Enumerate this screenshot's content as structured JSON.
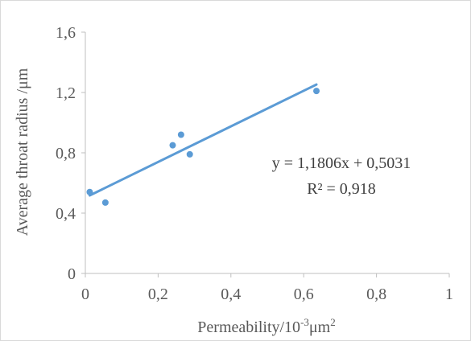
{
  "chart_data": {
    "type": "scatter",
    "title": "",
    "xlabel_main": "Permeability/10",
    "xlabel_sup": "-3",
    "xlabel_tail": "μm",
    "xlabel_sup2": "2",
    "ylabel": "Average throat radius /μm",
    "xlim": [
      0,
      1
    ],
    "ylim": [
      0,
      1.6
    ],
    "x_ticks": [
      0,
      0.2,
      0.4,
      0.6,
      0.8,
      1
    ],
    "x_tick_labels": [
      "0",
      "0,2",
      "0,4",
      "0,6",
      "0,8",
      "1"
    ],
    "y_ticks": [
      0,
      0.4,
      0.8,
      1.2,
      1.6
    ],
    "y_tick_labels": [
      "0",
      "0,4",
      "0,8",
      "1,2",
      "1,6"
    ],
    "grid": false,
    "series": [
      {
        "points": [
          {
            "x": 0.012,
            "y": 0.54
          },
          {
            "x": 0.055,
            "y": 0.47
          },
          {
            "x": 0.24,
            "y": 0.85
          },
          {
            "x": 0.263,
            "y": 0.92
          },
          {
            "x": 0.287,
            "y": 0.79
          },
          {
            "x": 0.635,
            "y": 1.21
          }
        ],
        "color": "#5b9bd5"
      }
    ],
    "trendline": {
      "slope": 1.1806,
      "intercept": 0.5031,
      "x_range": [
        0.012,
        0.635
      ],
      "color": "#5b9bd5"
    },
    "annotations": {
      "equation": "y = 1,1806x + 0,5031",
      "r_squared": "R² = 0,918"
    }
  }
}
